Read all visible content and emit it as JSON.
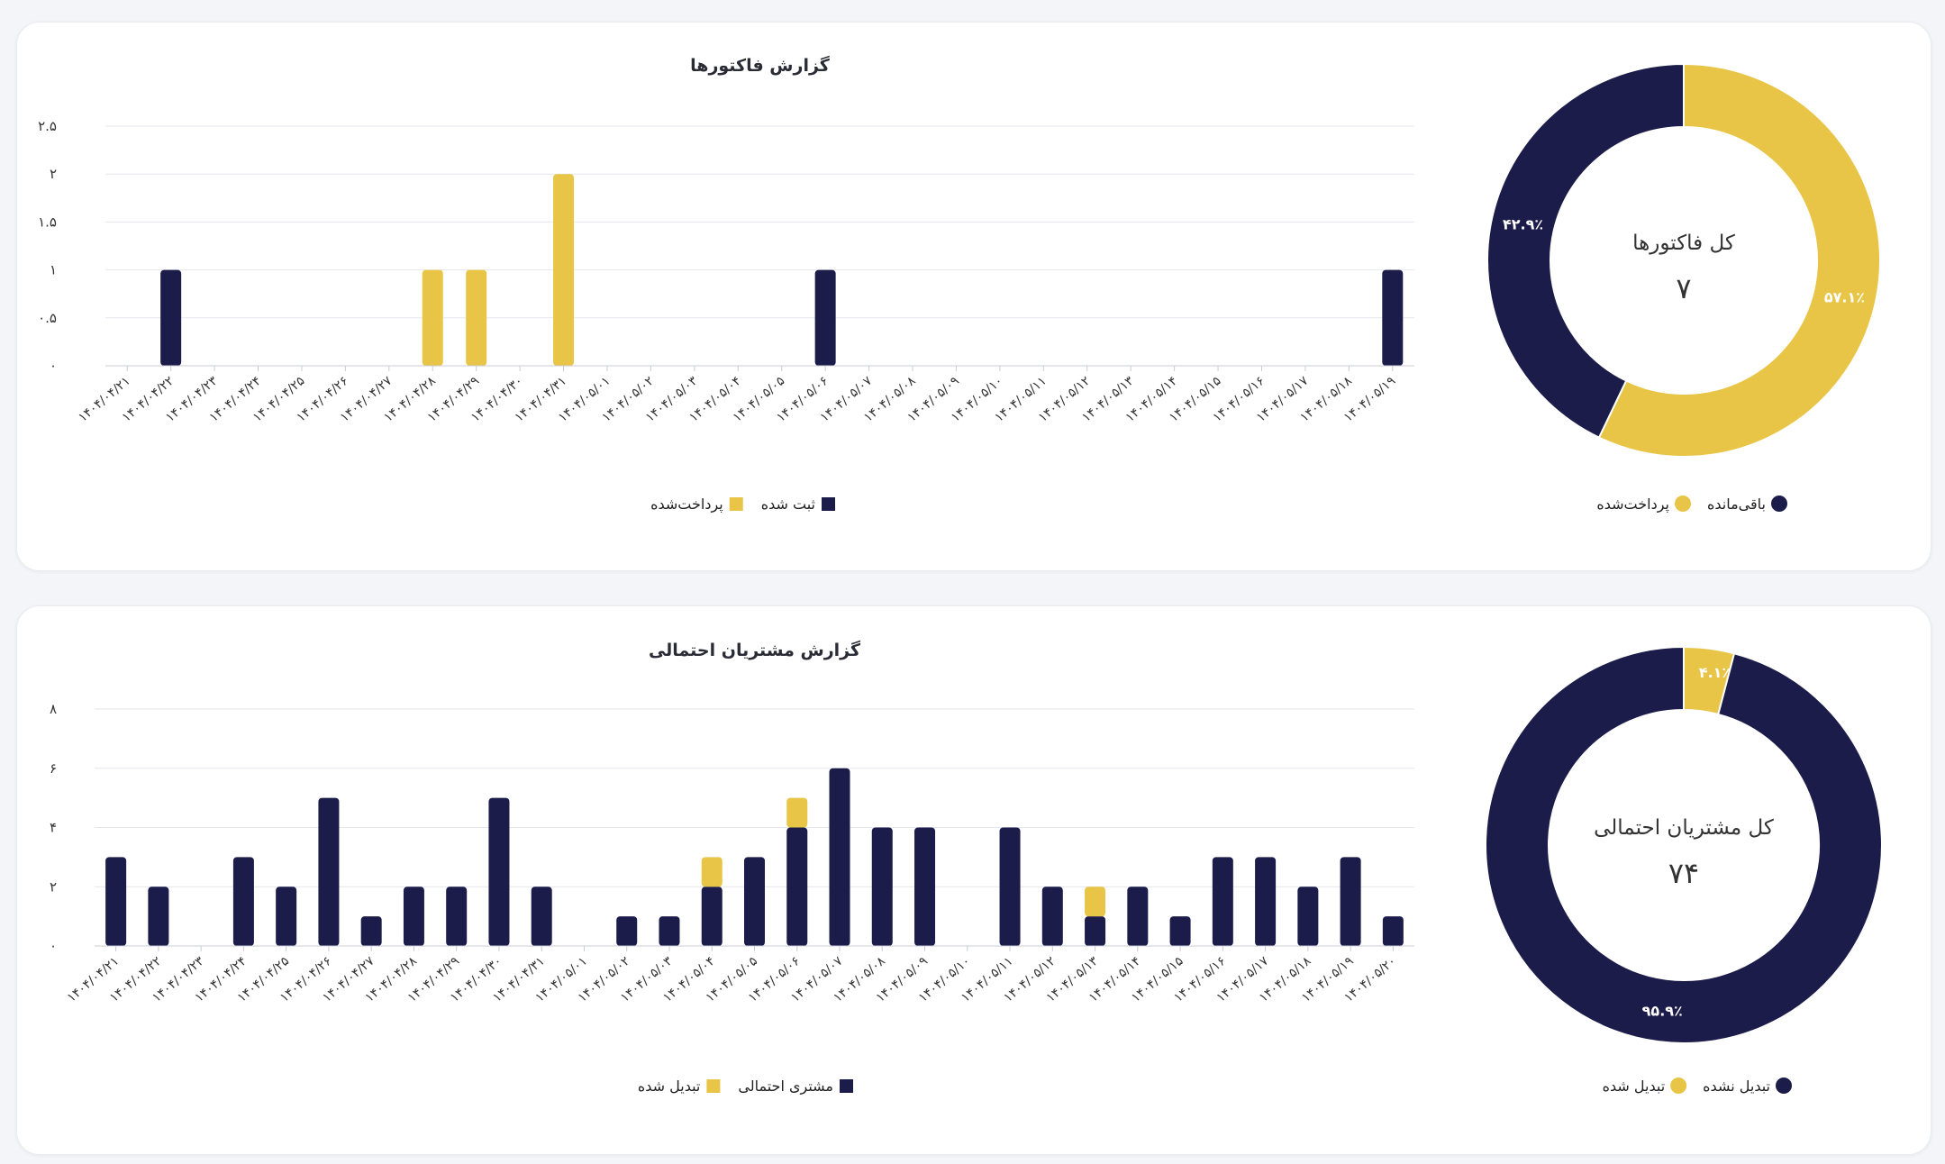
{
  "colors": {
    "navy": "#1c1c4a",
    "yellow": "#e8c547",
    "grid": "#e5e7ee"
  },
  "chart_data": [
    {
      "type": "bar",
      "title": "گزارش فاکتورها",
      "categories": [
        "۱۴۰۴/۰۴/۲۱",
        "۱۴۰۴/۰۴/۲۲",
        "۱۴۰۴/۰۴/۲۳",
        "۱۴۰۴/۰۴/۲۴",
        "۱۴۰۴/۰۴/۲۵",
        "۱۴۰۴/۰۴/۲۶",
        "۱۴۰۴/۰۴/۲۷",
        "۱۴۰۴/۰۴/۲۸",
        "۱۴۰۴/۰۴/۲۹",
        "۱۴۰۴/۰۴/۳۰",
        "۱۴۰۴/۰۴/۳۱",
        "۱۴۰۴/۰۵/۰۱",
        "۱۴۰۴/۰۵/۰۲",
        "۱۴۰۴/۰۵/۰۳",
        "۱۴۰۴/۰۵/۰۴",
        "۱۴۰۴/۰۵/۰۵",
        "۱۴۰۴/۰۵/۰۶",
        "۱۴۰۴/۰۵/۰۷",
        "۱۴۰۴/۰۵/۰۸",
        "۱۴۰۴/۰۵/۰۹",
        "۱۴۰۴/۰۵/۱۰",
        "۱۴۰۴/۰۵/۱۱",
        "۱۴۰۴/۰۵/۱۲",
        "۱۴۰۴/۰۵/۱۳",
        "۱۴۰۴/۰۵/۱۴",
        "۱۴۰۴/۰۵/۱۵",
        "۱۴۰۴/۰۵/۱۶",
        "۱۴۰۴/۰۵/۱۷",
        "۱۴۰۴/۰۵/۱۸",
        "۱۴۰۴/۰۵/۱۹"
      ],
      "series": [
        {
          "name": "ثبت شده",
          "color": "#1c1c4a",
          "values": [
            0,
            1,
            0,
            0,
            0,
            0,
            0,
            0,
            0,
            0,
            0,
            0,
            0,
            0,
            0,
            0,
            1,
            0,
            0,
            0,
            0,
            0,
            0,
            0,
            0,
            0,
            0,
            0,
            0,
            1
          ]
        },
        {
          "name": "پرداخت‌شده",
          "color": "#e8c547",
          "values": [
            0,
            0,
            0,
            0,
            0,
            0,
            0,
            1,
            1,
            0,
            2,
            0,
            0,
            0,
            0,
            0,
            0,
            0,
            0,
            0,
            0,
            0,
            0,
            0,
            0,
            0,
            0,
            0,
            0,
            0
          ]
        }
      ],
      "stacked": false,
      "ylim": [
        0,
        2.5
      ],
      "yticks": [
        {
          "value": 0,
          "label": "۰"
        },
        {
          "value": 0.5,
          "label": "۰.۵"
        },
        {
          "value": 1,
          "label": "۱"
        },
        {
          "value": 1.5,
          "label": "۱.۵"
        },
        {
          "value": 2,
          "label": "۲"
        },
        {
          "value": 2.5,
          "label": "۲.۵"
        }
      ],
      "grid": true,
      "legend": "bottom-center"
    },
    {
      "type": "bar",
      "title": "گزارش مشتریان احتمالی",
      "categories": [
        "۱۴۰۴/۰۴/۲۱",
        "۱۴۰۴/۰۴/۲۲",
        "۱۴۰۴/۰۴/۲۳",
        "۱۴۰۴/۰۴/۲۴",
        "۱۴۰۴/۰۴/۲۵",
        "۱۴۰۴/۰۴/۲۶",
        "۱۴۰۴/۰۴/۲۷",
        "۱۴۰۴/۰۴/۲۸",
        "۱۴۰۴/۰۴/۲۹",
        "۱۴۰۴/۰۴/۳۰",
        "۱۴۰۴/۰۴/۳۱",
        "۱۴۰۴/۰۵/۰۱",
        "۱۴۰۴/۰۵/۰۲",
        "۱۴۰۴/۰۵/۰۳",
        "۱۴۰۴/۰۵/۰۴",
        "۱۴۰۴/۰۵/۰۵",
        "۱۴۰۴/۰۵/۰۶",
        "۱۴۰۴/۰۵/۰۷",
        "۱۴۰۴/۰۵/۰۸",
        "۱۴۰۴/۰۵/۰۹",
        "۱۴۰۴/۰۵/۱۰",
        "۱۴۰۴/۰۵/۱۱",
        "۱۴۰۴/۰۵/۱۲",
        "۱۴۰۴/۰۵/۱۳",
        "۱۴۰۴/۰۵/۱۴",
        "۱۴۰۴/۰۵/۱۵",
        "۱۴۰۴/۰۵/۱۶",
        "۱۴۰۴/۰۵/۱۷",
        "۱۴۰۴/۰۵/۱۸",
        "۱۴۰۴/۰۵/۱۹",
        "۱۴۰۴/۰۵/۲۰"
      ],
      "series": [
        {
          "name": "مشتری احتمالی",
          "color": "#1c1c4a",
          "values": [
            3,
            2,
            0,
            3,
            2,
            5,
            1,
            2,
            2,
            5,
            2,
            0,
            1,
            1,
            2,
            3,
            4,
            6,
            4,
            4,
            0,
            4,
            2,
            1,
            2,
            1,
            3,
            3,
            2,
            3,
            1
          ]
        },
        {
          "name": "تبدیل شده",
          "color": "#e8c547",
          "values": [
            0,
            0,
            0,
            0,
            0,
            0,
            0,
            0,
            0,
            0,
            0,
            0,
            0,
            0,
            1,
            0,
            1,
            0,
            0,
            0,
            0,
            0,
            0,
            1,
            0,
            0,
            0,
            0,
            0,
            0,
            0
          ]
        }
      ],
      "stacked": true,
      "ylim": [
        0,
        8
      ],
      "yticks": [
        {
          "value": 0,
          "label": "۰"
        },
        {
          "value": 2,
          "label": "۲"
        },
        {
          "value": 4,
          "label": "۴"
        },
        {
          "value": 6,
          "label": "۶"
        },
        {
          "value": 8,
          "label": "۸"
        }
      ],
      "grid": true,
      "legend": "bottom-center"
    },
    {
      "type": "pie",
      "title": "کل فاکتورها",
      "total": "۷",
      "slices": [
        {
          "name": "پرداخت‌شده",
          "value": 57.1,
          "label": "۵۷.۱٪",
          "color": "#e8c547"
        },
        {
          "name": "باقی‌مانده",
          "value": 42.9,
          "label": "۴۲.۹٪",
          "color": "#1c1c4a"
        }
      ],
      "legend": "bottom-center"
    },
    {
      "type": "pie",
      "title": "کل مشتریان احتمالی",
      "total": "۷۴",
      "slices": [
        {
          "name": "تبدیل شده",
          "value": 4.1,
          "label": "۴.۱٪",
          "color": "#e8c547"
        },
        {
          "name": "تبدیل نشده",
          "value": 95.9,
          "label": "۹۵.۹٪",
          "color": "#1c1c4a"
        }
      ],
      "legend": "bottom-center"
    }
  ]
}
